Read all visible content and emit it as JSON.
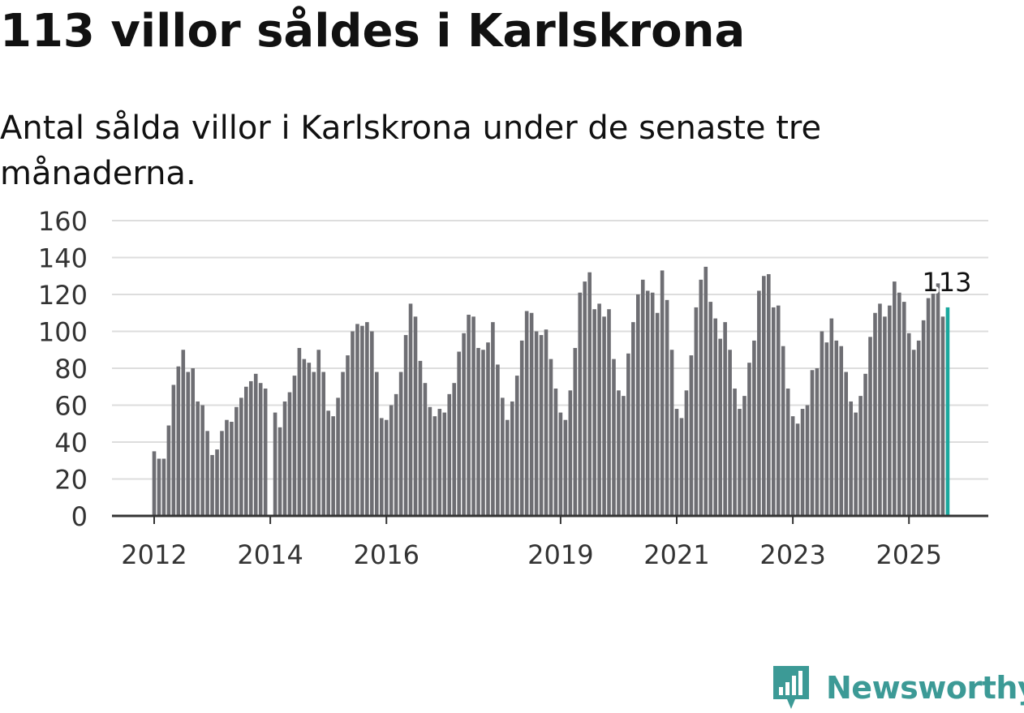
{
  "title": "113 villor såldes i Karlskrona",
  "subtitle": "Antal sålda villor i Karlskrona under de senaste tre månaderna.",
  "brand": {
    "name": "Newsworthy",
    "icon": "newsworthy-logo-icon",
    "color": "#3c9a96"
  },
  "chart_data": {
    "type": "bar",
    "x_start": "2012-01",
    "x_unit": "month",
    "values": [
      35,
      31,
      31,
      49,
      71,
      81,
      90,
      78,
      80,
      62,
      60,
      46,
      33,
      36,
      46,
      52,
      51,
      59,
      64,
      70,
      73,
      77,
      72,
      69,
      null,
      56,
      48,
      62,
      67,
      76,
      91,
      85,
      83,
      78,
      90,
      78,
      57,
      54,
      64,
      78,
      87,
      100,
      104,
      103,
      105,
      100,
      78,
      53,
      52,
      60,
      66,
      78,
      98,
      115,
      108,
      84,
      72,
      59,
      54,
      58,
      56,
      66,
      72,
      89,
      99,
      109,
      108,
      91,
      90,
      94,
      105,
      82,
      64,
      52,
      62,
      76,
      95,
      111,
      110,
      100,
      98,
      101,
      85,
      69,
      56,
      52,
      68,
      91,
      121,
      127,
      132,
      112,
      115,
      108,
      112,
      85,
      68,
      65,
      88,
      105,
      120,
      128,
      122,
      121,
      110,
      133,
      117,
      90,
      58,
      53,
      68,
      87,
      113,
      128,
      135,
      116,
      107,
      96,
      105,
      90,
      69,
      58,
      65,
      83,
      95,
      122,
      130,
      131,
      113,
      114,
      92,
      69,
      54,
      50,
      58,
      60,
      79,
      80,
      100,
      94,
      107,
      95,
      92,
      78,
      62,
      56,
      65,
      77,
      97,
      110,
      115,
      108,
      114,
      127,
      121,
      116,
      99,
      90,
      95,
      106,
      118,
      123,
      126,
      108,
      113
    ],
    "highlight": {
      "value": 113,
      "label": "113",
      "color": "#1aa89e"
    },
    "bar_color": "#6e6e73",
    "ylim": [
      0,
      160
    ],
    "y_ticks": [
      0,
      20,
      40,
      60,
      80,
      100,
      120,
      140,
      160
    ],
    "y_tick_labels": [
      "0",
      "20",
      "40",
      "60",
      "80",
      "100",
      "120",
      "140",
      "160"
    ],
    "x_ticks": [
      {
        "label": "2012",
        "month_index": 0
      },
      {
        "label": "2014",
        "month_index": 24
      },
      {
        "label": "2016",
        "month_index": 48
      },
      {
        "label": "2019",
        "month_index": 84
      },
      {
        "label": "2021",
        "month_index": 108
      },
      {
        "label": "2023",
        "month_index": 132
      },
      {
        "label": "2025",
        "month_index": 156
      }
    ],
    "xlabel": "",
    "ylabel": "",
    "grid": true,
    "gridline_color": "#dddddd",
    "axis_color": "#333333"
  }
}
